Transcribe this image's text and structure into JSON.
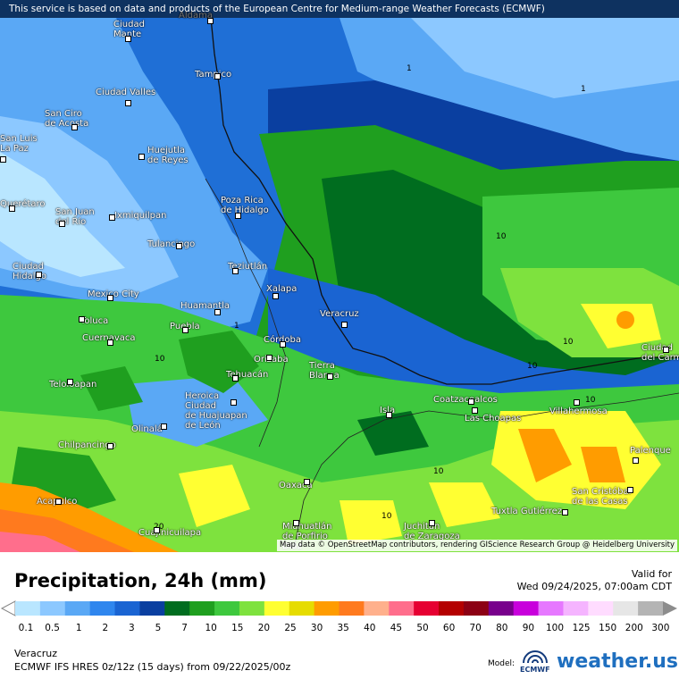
{
  "banner": "This service is based on data and products of the European Centre for Medium-range Weather Forecasts (ECMWF)",
  "attribution": "Map data © OpenStreetMap contributors, rendering GIScience Research Group @ Heidelberg University",
  "title": "Precipitation, 24h (mm)",
  "valid_label": "Valid for",
  "valid_time": "Wed 09/24/2025, 07:00am CDT",
  "region": "Veracruz",
  "model_run": "ECMWF IFS HRES 0z/12z (15 days) from 09/22/2025/00z",
  "model_label": "Model:",
  "model_logo_text": "ECMWF",
  "brand": "weather.us",
  "legend": {
    "ticks": [
      "0.1",
      "0.5",
      "1",
      "2",
      "3",
      "5",
      "7",
      "10",
      "15",
      "20",
      "25",
      "30",
      "35",
      "40",
      "45",
      "50",
      "60",
      "70",
      "80",
      "90",
      "100",
      "125",
      "150",
      "200",
      "300"
    ],
    "colors": [
      "#b9e6ff",
      "#8cc8ff",
      "#5aa8f5",
      "#2f86ee",
      "#1a64d2",
      "#0a3fa0",
      "#006d1f",
      "#1f9f1f",
      "#3ec83e",
      "#7ee23e",
      "#ffff32",
      "#e6dc00",
      "#ff9c00",
      "#ff7a1e",
      "#ffb08c",
      "#ff6e8c",
      "#e60032",
      "#b40000",
      "#8c0014",
      "#78008c",
      "#c800dc",
      "#e678ff",
      "#f5b4ff",
      "#ffdcff",
      "#e6e6e6",
      "#b4b4b4"
    ]
  },
  "cities": [
    {
      "name": "Aldama"
    },
    {
      "name": "Ciudad\nMante"
    },
    {
      "name": "Tampico"
    },
    {
      "name": "Ciudad Valles"
    },
    {
      "name": "San Ciro\nde Acosta"
    },
    {
      "name": "Huejutla\nde Reyes"
    },
    {
      "name": "San Luis\nLa Paz"
    },
    {
      "name": "Querétaro"
    },
    {
      "name": "San Juan\ndel Río"
    },
    {
      "name": "Ixmiquilpan"
    },
    {
      "name": "Poza Rica\nde Hidalgo"
    },
    {
      "name": "Tulancingo"
    },
    {
      "name": "Ciudad\nHidalgo"
    },
    {
      "name": "Teziutlán"
    },
    {
      "name": "Xalapa"
    },
    {
      "name": "Mexico City"
    },
    {
      "name": "Huamantla"
    },
    {
      "name": "Toluca"
    },
    {
      "name": "Veracruz"
    },
    {
      "name": "Cuernavaca"
    },
    {
      "name": "Puebla"
    },
    {
      "name": "Córdoba"
    },
    {
      "name": "Orizaba"
    },
    {
      "name": "Tierra\nBlanca"
    },
    {
      "name": "Teloloapan"
    },
    {
      "name": "Tehuacán"
    },
    {
      "name": "Heroica\nCiudad\nde Huajuapan\nde León"
    },
    {
      "name": "Coatzacoalcos"
    },
    {
      "name": "Las Choapas"
    },
    {
      "name": "Isla"
    },
    {
      "name": "Villahermosa"
    },
    {
      "name": "Ciudad\ndel Carmen"
    },
    {
      "name": "Olinalá"
    },
    {
      "name": "Chilpancingo"
    },
    {
      "name": "Palenque"
    },
    {
      "name": "Oaxaca"
    },
    {
      "name": "Acapulco"
    },
    {
      "name": "San Cristóbal\nde las Casas"
    },
    {
      "name": "Tuxtla Gutiérrez"
    },
    {
      "name": "Cuajinicuilapa"
    },
    {
      "name": "Miahuatlán\nde Porfirio\nDíaz"
    },
    {
      "name": "Juchitán\nde Zaragoza"
    }
  ],
  "contour_labels": [
    "1",
    "1",
    "1",
    "10",
    "10",
    "10",
    "10",
    "10",
    "10",
    "10",
    "20"
  ]
}
